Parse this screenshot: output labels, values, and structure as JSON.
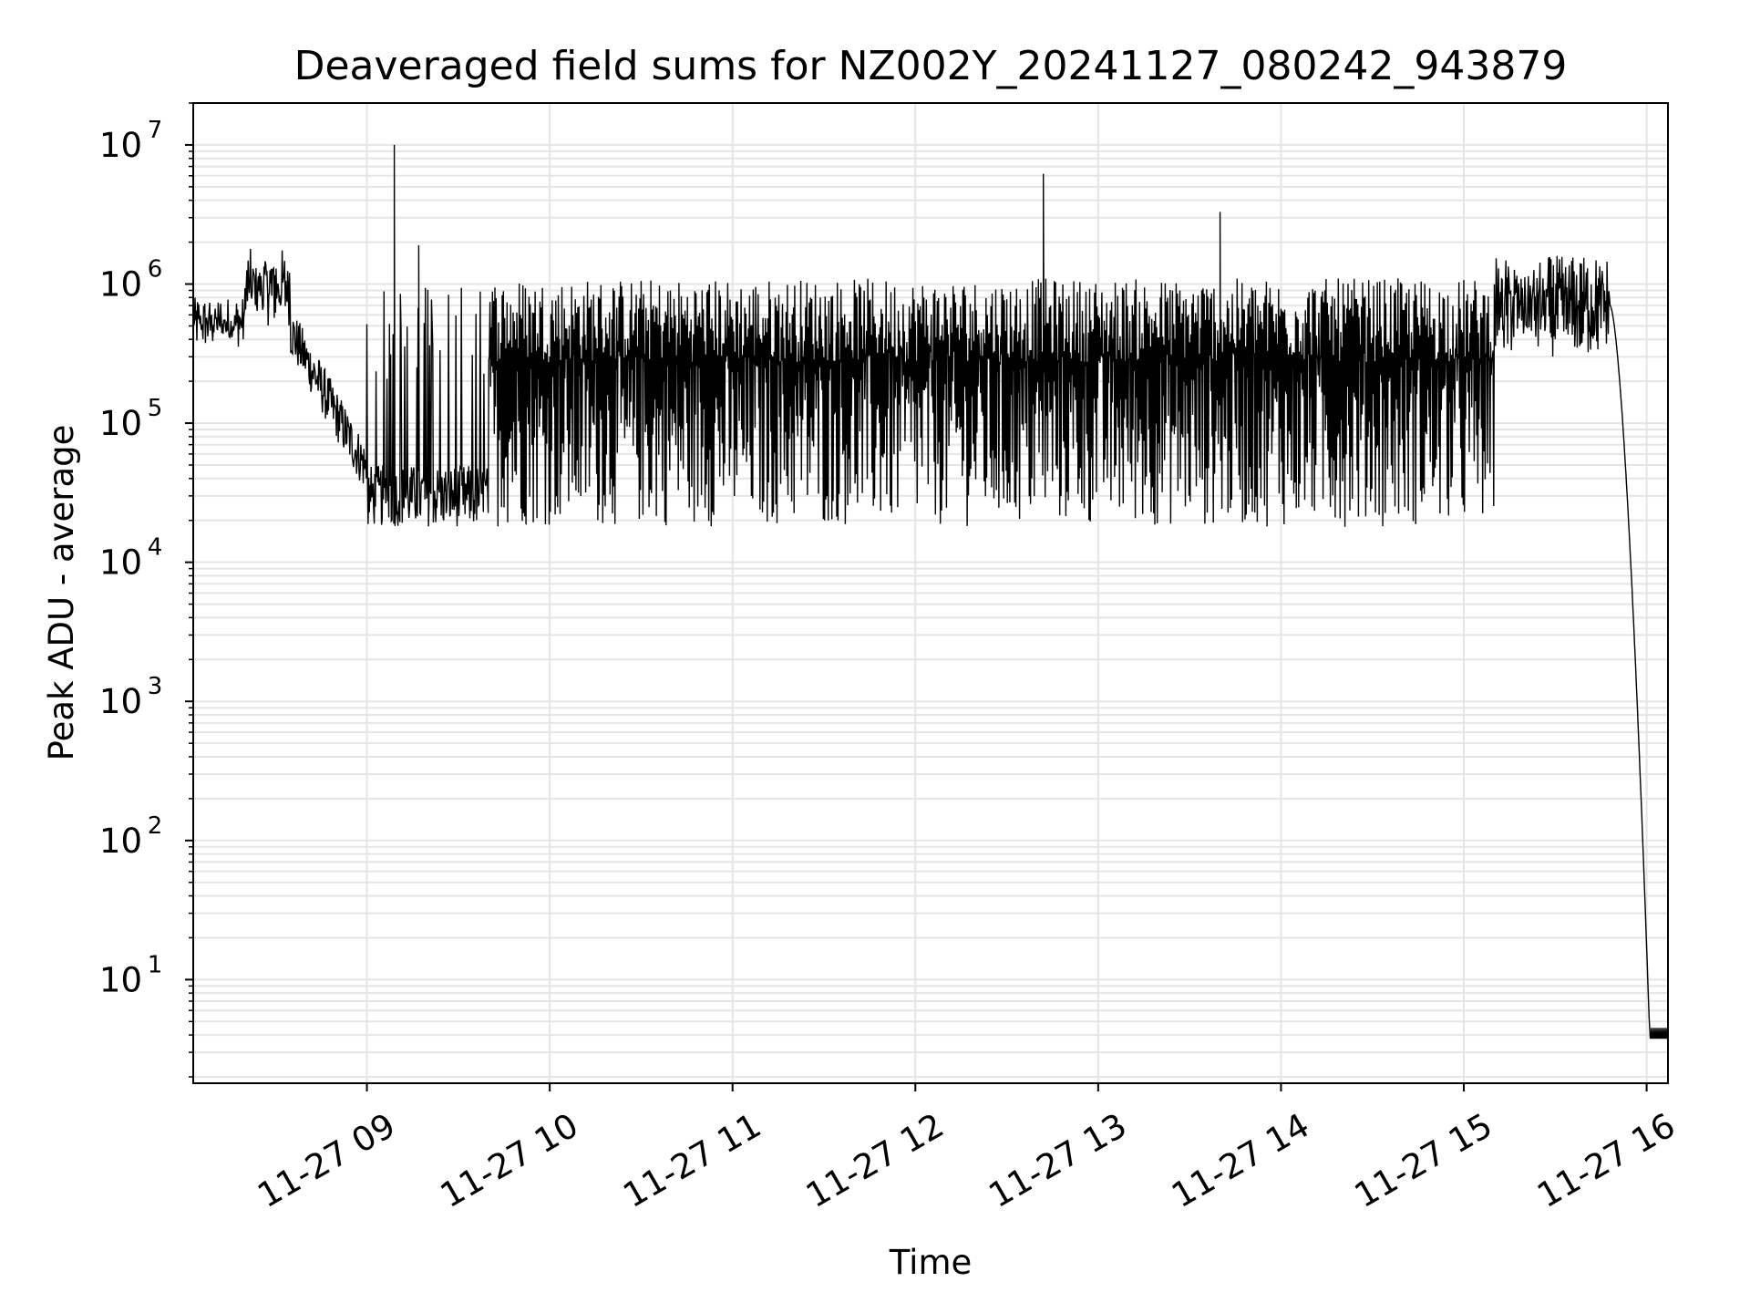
{
  "chart_data": {
    "type": "line",
    "title": "Deaveraged field sums for NZ002Y_20241127_080242_943879",
    "xlabel": "Time",
    "ylabel": "Peak ADU - average",
    "yscale": "log",
    "ylim": [
      1.8,
      20000000
    ],
    "xlim": [
      "11-27 08:03",
      "11-27 16:07"
    ],
    "grid": {
      "major": true,
      "minor_y": true,
      "color": "#e5e5e5"
    },
    "line_color": "#000000",
    "x_ticks": [
      "11-27 09",
      "11-27 10",
      "11-27 11",
      "11-27 12",
      "11-27 13",
      "11-27 14",
      "11-27 15",
      "11-27 16"
    ],
    "y_ticks": [
      {
        "base": "10",
        "exp": "1",
        "value": 10
      },
      {
        "base": "10",
        "exp": "2",
        "value": 100
      },
      {
        "base": "10",
        "exp": "3",
        "value": 1000
      },
      {
        "base": "10",
        "exp": "4",
        "value": 10000
      },
      {
        "base": "10",
        "exp": "5",
        "value": 100000
      },
      {
        "base": "10",
        "exp": "6",
        "value": 1000000
      },
      {
        "base": "10",
        "exp": "7",
        "value": 10000000
      }
    ],
    "series": [
      {
        "segments": [
          {
            "t_start": "11-27 08:03",
            "t_end": "11-27 08:20",
            "low": 350000,
            "high": 800000,
            "type": "noise"
          },
          {
            "t_start": "11-27 08:20",
            "t_end": "11-27 08:35",
            "low": 500000,
            "high": 1800000,
            "type": "noise"
          },
          {
            "t_start": "11-27 08:35",
            "t_end": "11-27 09:00",
            "low": 25000,
            "high": 500000,
            "type": "decay"
          },
          {
            "t_start": "11-27 09:00",
            "t_end": "11-27 09:40",
            "low": 18000,
            "high": 50000,
            "type": "floor_with_spikes",
            "spike_high": 1000000
          },
          {
            "t_start": "11-27 09:40",
            "t_end": "11-27 15:10",
            "low": 18000,
            "high": 1100000,
            "type": "oscillation"
          },
          {
            "t_start": "11-27 15:10",
            "t_end": "11-27 15:48",
            "low": 300000,
            "high": 1600000,
            "type": "noise"
          },
          {
            "t_start": "11-27 15:48",
            "t_end": "11-27 16:01",
            "low": 4,
            "high": 700000,
            "type": "steep_fall"
          },
          {
            "t_start": "11-27 16:01",
            "t_end": "11-27 16:07",
            "low": 3.8,
            "high": 4.5,
            "type": "flat"
          }
        ],
        "spikes": [
          {
            "x": "11-27 09:09",
            "y": 10000000
          },
          {
            "x": "11-27 09:17",
            "y": 1900000
          },
          {
            "x": "11-27 12:42",
            "y": 6200000
          },
          {
            "x": "11-27 13:40",
            "y": 3300000
          }
        ]
      }
    ]
  }
}
